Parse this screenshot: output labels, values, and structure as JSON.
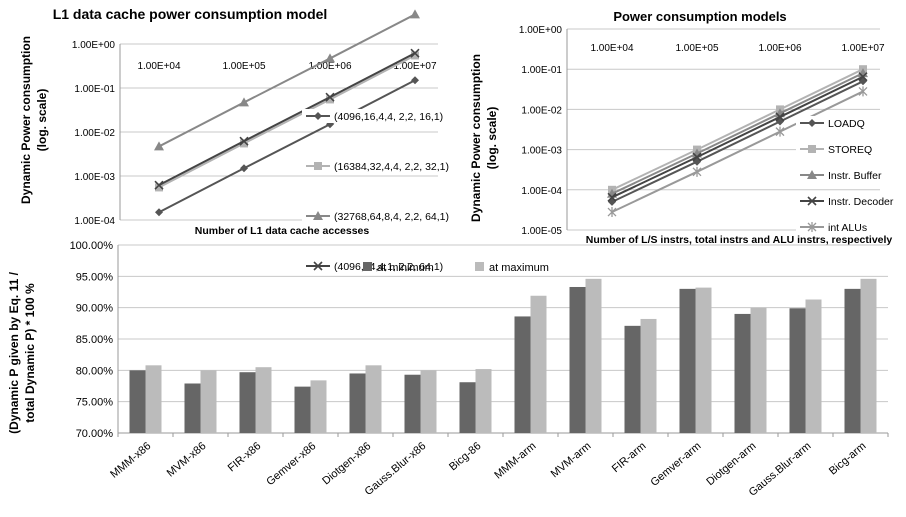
{
  "chart_data": [
    {
      "type": "line",
      "title": "L1 data cache power consumption model",
      "xlabel": "Number of L1 data cache accesses",
      "ylabel": "Dynamic Power consumption (log. scale)",
      "ylabel_lines": [
        "Dynamic Power consumption",
        "(log. scale)"
      ],
      "yscale": "log",
      "xscale": "log",
      "ylim": [
        0.0001,
        1
      ],
      "yticks": [
        "1.00E-04",
        "1.00E-03",
        "1.00E-02",
        "1.00E-01",
        "1.00E+00"
      ],
      "xticks": [
        "1.00E+04",
        "1.00E+05",
        "1.00E+06",
        "1.00E+07"
      ],
      "x": [
        10000,
        100000,
        1000000,
        10000000
      ],
      "series": [
        {
          "name": "(4096,16,4,4, 2,2, 16,1)",
          "marker": "diamond",
          "color": "#555555",
          "values": [
            0.00015,
            0.0015,
            0.015,
            0.15
          ]
        },
        {
          "name": "(16384,32,4,4, 2,2, 32,1)",
          "marker": "square",
          "color": "#b3b3b3",
          "values": [
            0.00055,
            0.0055,
            0.055,
            0.55
          ]
        },
        {
          "name": "(32768,64,8,4, 2,2, 64,1)",
          "marker": "triangle",
          "color": "#888888",
          "values": [
            0.0047,
            0.047,
            0.47,
            4.7
          ]
        },
        {
          "name": "(4096,64,4,1, 2,2, 64,1)",
          "marker": "x",
          "color": "#444444",
          "values": [
            0.00062,
            0.0062,
            0.062,
            0.62
          ]
        }
      ],
      "grid": true,
      "legend_position": "right"
    },
    {
      "type": "line",
      "title": "Power consumption models",
      "xlabel": "Number of L/S instrs, total instrs and ALU instrs, respectively",
      "ylabel": "Dynamic Power consumption (log. scale)",
      "ylabel_lines": [
        "Dynamic Power consumption",
        "(log. scale)"
      ],
      "yscale": "log",
      "xscale": "log",
      "ylim": [
        1e-05,
        1
      ],
      "yticks": [
        "1.00E-05",
        "1.00E-04",
        "1.00E-03",
        "1.00E-02",
        "1.00E-01",
        "1.00E+00"
      ],
      "xticks": [
        "1.00E+04",
        "1.00E+05",
        "1.00E+06",
        "1.00E+07"
      ],
      "x": [
        10000,
        100000,
        1000000,
        10000000
      ],
      "series": [
        {
          "name": "LOADQ",
          "marker": "diamond",
          "color": "#555555",
          "values": [
            5e-05,
            0.0005,
            0.005,
            0.05
          ]
        },
        {
          "name": "STOREQ",
          "marker": "square",
          "color": "#b3b3b3",
          "values": [
            0.0001,
            0.001,
            0.01,
            0.1
          ]
        },
        {
          "name": "Instr. Buffer",
          "marker": "triangle",
          "color": "#888888",
          "values": [
            8e-05,
            0.0008,
            0.008,
            0.08
          ]
        },
        {
          "name": "Instr. Decoder",
          "marker": "x",
          "color": "#444444",
          "values": [
            6.5e-05,
            0.00065,
            0.0065,
            0.065
          ]
        },
        {
          "name": "int ALUs",
          "marker": "star",
          "color": "#999999",
          "values": [
            2.8e-05,
            0.00028,
            0.0028,
            0.028
          ]
        }
      ],
      "grid": true,
      "legend_position": "right"
    },
    {
      "type": "bar",
      "title": "",
      "xlabel": "",
      "ylabel": "(Dynamic P given by Eq. 11 / total Dynamic P) * 100 %",
      "ylabel_lines": [
        "(Dynamic P given by Eq. 11 /",
        "total Dynamic P) * 100 %"
      ],
      "ylim": [
        70,
        100
      ],
      "yticks": [
        "70.00%",
        "75.00%",
        "80.00%",
        "85.00%",
        "90.00%",
        "95.00%",
        "100.00%"
      ],
      "categories": [
        "MMM-x86",
        "MVM-x86",
        "FIR-x86",
        "Gemver-x86",
        "Diotgen-x86",
        "Gauss.Blur-x86",
        "Bicg-86",
        "MMM-arm",
        "MVM-arm",
        "FIR-arm",
        "Gemver-arm",
        "Diotgen-arm",
        "Gauss.Blur-arm",
        "Bicg-arm"
      ],
      "series": [
        {
          "name": "at minimum",
          "color": "#666666",
          "values": [
            80.0,
            77.9,
            79.7,
            77.4,
            79.5,
            79.3,
            78.1,
            88.6,
            93.3,
            87.1,
            93.0,
            89.0,
            89.9,
            93.0
          ]
        },
        {
          "name": "at maximum",
          "color": "#bbbbbb",
          "values": [
            80.8,
            80.0,
            80.5,
            78.4,
            80.8,
            80.0,
            80.2,
            91.9,
            94.6,
            88.2,
            93.2,
            90.0,
            91.3,
            94.6
          ]
        }
      ],
      "grid": true,
      "legend_position": "top"
    }
  ]
}
